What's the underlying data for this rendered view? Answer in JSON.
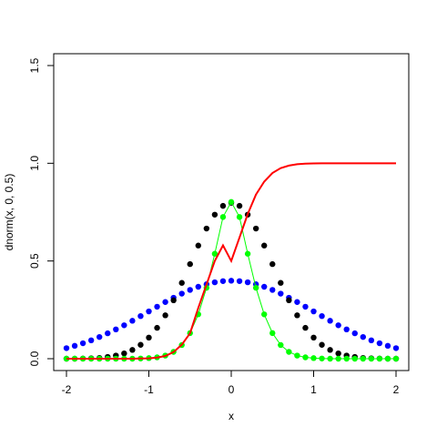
{
  "chart_data": {
    "type": "scatter",
    "title": "",
    "xlabel": "x",
    "ylabel": "dnorm(x, 0, 0.5)",
    "xlim": [
      -2,
      2
    ],
    "ylim": [
      0,
      1.5
    ],
    "x_ticks": [
      -2,
      -1,
      0,
      1,
      2
    ],
    "y_ticks": [
      0.0,
      0.5,
      1.0,
      1.5
    ],
    "x_tick_labels": [
      "-2",
      "-1",
      "0",
      "1",
      "2"
    ],
    "y_tick_labels": [
      "0.0",
      "0.5",
      "1.0",
      "1.5"
    ],
    "grid": false,
    "legend": "none",
    "x": [
      -2.0,
      -1.9,
      -1.8,
      -1.7,
      -1.6,
      -1.5,
      -1.4,
      -1.3,
      -1.2,
      -1.1,
      -1.0,
      -0.9,
      -0.8,
      -0.7,
      -0.6,
      -0.5,
      -0.4,
      -0.3,
      -0.2,
      -0.1,
      0.0,
      0.1,
      0.2,
      0.3,
      0.4,
      0.5,
      0.6,
      0.7,
      0.8,
      0.9,
      1.0,
      1.1,
      1.2,
      1.3,
      1.4,
      1.5,
      1.6,
      1.7,
      1.8,
      1.9,
      2.0
    ],
    "series": [
      {
        "style": "points",
        "color": "#0000ff",
        "values": [
          0.054,
          0.066,
          0.079,
          0.094,
          0.111,
          0.13,
          0.15,
          0.171,
          0.194,
          0.218,
          0.242,
          0.266,
          0.29,
          0.312,
          0.333,
          0.352,
          0.368,
          0.381,
          0.391,
          0.397,
          0.399,
          0.397,
          0.391,
          0.381,
          0.368,
          0.352,
          0.333,
          0.312,
          0.29,
          0.266,
          0.242,
          0.218,
          0.194,
          0.171,
          0.15,
          0.13,
          0.111,
          0.094,
          0.079,
          0.066,
          0.054
        ]
      },
      {
        "style": "points",
        "color": "#000000",
        "values": [
          0.0,
          0.0,
          0.001,
          0.002,
          0.004,
          0.009,
          0.016,
          0.027,
          0.045,
          0.071,
          0.108,
          0.158,
          0.222,
          0.299,
          0.388,
          0.484,
          0.579,
          0.666,
          0.737,
          0.782,
          0.798,
          0.782,
          0.737,
          0.666,
          0.579,
          0.484,
          0.388,
          0.299,
          0.222,
          0.158,
          0.108,
          0.071,
          0.045,
          0.027,
          0.016,
          0.009,
          0.004,
          0.002,
          0.001,
          0.0,
          0.0
        ]
      },
      {
        "style": "line+points",
        "color": "#00ff00",
        "values": [
          0.0,
          0.0,
          0.0,
          0.0,
          0.0,
          0.0,
          0.0,
          0.0,
          0.0,
          0.001,
          0.003,
          0.007,
          0.016,
          0.035,
          0.07,
          0.131,
          0.227,
          0.363,
          0.537,
          0.725,
          0.802,
          0.725,
          0.537,
          0.363,
          0.227,
          0.131,
          0.07,
          0.035,
          0.016,
          0.007,
          0.003,
          0.001,
          0.0,
          0.0,
          0.0,
          0.0,
          0.0,
          0.0,
          0.0,
          0.0,
          0.0
        ]
      },
      {
        "style": "line",
        "color": "#ff0000",
        "values": [
          0.0,
          0.0,
          0.0,
          0.0,
          0.0,
          0.0,
          0.0,
          0.0,
          0.0,
          0.001,
          0.002,
          0.006,
          0.014,
          0.034,
          0.072,
          0.13,
          0.26,
          0.38,
          0.5,
          0.58,
          0.5,
          0.62,
          0.74,
          0.84,
          0.906,
          0.95,
          0.975,
          0.988,
          0.995,
          0.998,
          0.999,
          1.0,
          1.0,
          1.0,
          1.0,
          1.0,
          1.0,
          1.0,
          1.0,
          1.0,
          1.0
        ]
      }
    ]
  }
}
